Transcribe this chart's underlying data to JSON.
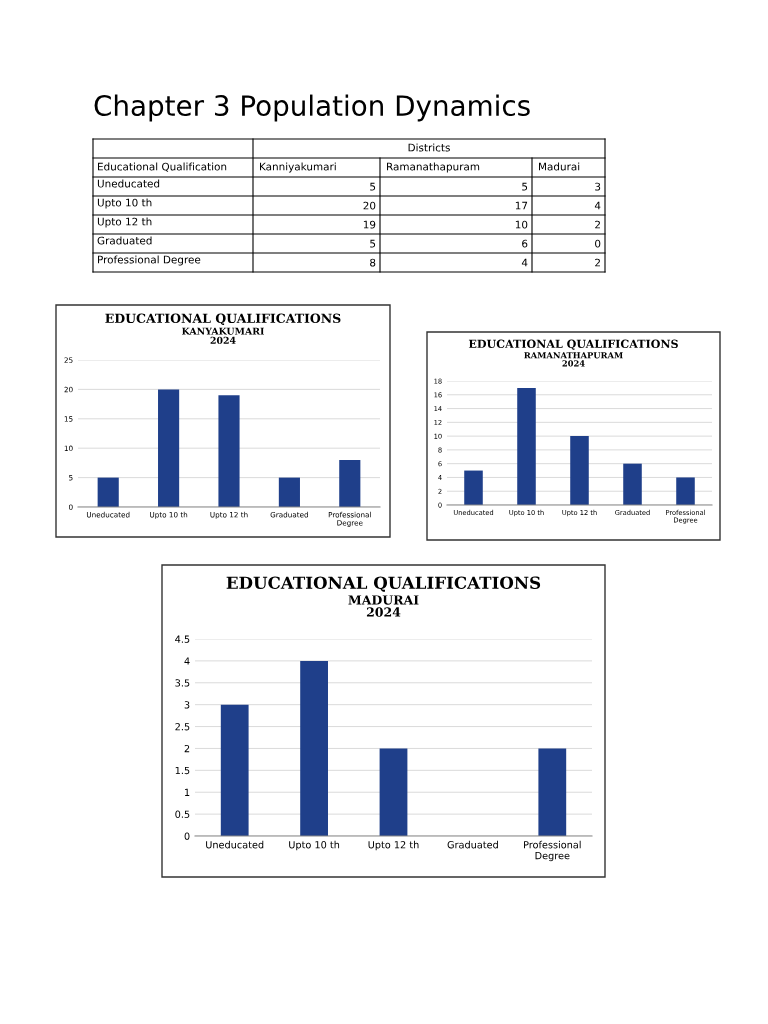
{
  "chart_data": [
    {
      "type": "other",
      "data_labels": true,
      "title": "Chapter 3 Population Dynamics",
      "legend_title": "Districts",
      "xlabel": "Educational Qualification",
      "categories": [
        "Uneducated",
        "Upto 10 th",
        "Upto 12 th",
        "Graduated",
        "Professional Degree"
      ],
      "series": [
        {
          "name": "Kanniyakumari",
          "values": [
            5,
            20,
            19,
            5,
            8
          ]
        },
        {
          "name": "Ramanathapuram",
          "values": [
            5,
            17,
            10,
            6,
            4
          ]
        },
        {
          "name": "Madurai",
          "values": [
            3,
            4,
            2,
            0,
            2
          ]
        }
      ]
    },
    {
      "type": "bar",
      "title": "EDUCATIONAL QUALIFICATIONS",
      "subtitle": "KANYAKUMARI\n2024",
      "categories": [
        "Uneducated",
        "Upto 10 th",
        "Upto 12 th",
        "Graduated",
        "Professional Degree"
      ],
      "values": [
        5,
        20,
        19,
        5,
        8
      ],
      "color": "#1f3f8a",
      "ylim": [
        0,
        25
      ],
      "yticks": [
        0,
        5,
        10,
        15,
        20,
        25
      ],
      "grid": "y"
    },
    {
      "type": "bar",
      "title": "EDUCATIONAL QUALIFICATIONS",
      "subtitle": "RAMANATHAPURAM\n2024",
      "categories": [
        "Uneducated",
        "Upto 10 th",
        "Upto 12 th",
        "Graduated",
        "Professional Degree"
      ],
      "values": [
        5,
        17,
        10,
        6,
        4
      ],
      "color": "#1f3f8a",
      "ylim": [
        0,
        18
      ],
      "yticks": [
        0,
        2,
        4,
        6,
        8,
        10,
        12,
        14,
        16,
        18
      ],
      "grid": "y"
    },
    {
      "type": "bar",
      "title": "EDUCATIONAL QUALIFICATIONS",
      "subtitle": "MADURAI\n2024",
      "categories": [
        "Uneducated",
        "Upto 10 th",
        "Upto 12 th",
        "Graduated",
        "Professional Degree"
      ],
      "values": [
        3,
        4,
        2,
        0,
        2
      ],
      "color": "#1f3f8a",
      "ylim": [
        0,
        4.5
      ],
      "yticks": [
        0,
        0.5,
        1,
        1.5,
        2,
        2.5,
        3,
        3.5,
        4,
        4.5
      ],
      "grid": "y"
    }
  ]
}
